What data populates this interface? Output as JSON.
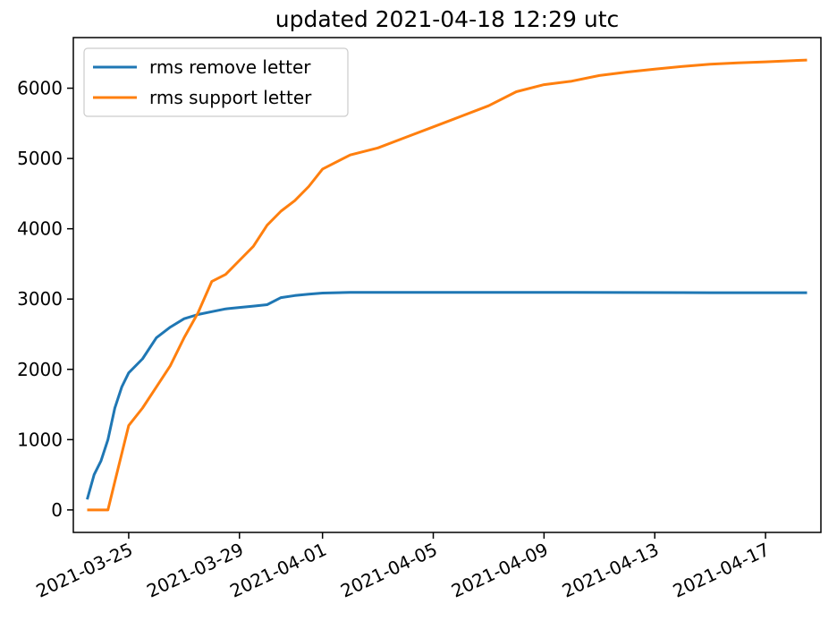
{
  "chart_data": {
    "type": "line",
    "title": "updated 2021-04-18 12:29 utc",
    "xlabel": "",
    "ylabel": "",
    "x_is_date": true,
    "xlim": [
      "2021-03-23",
      "2021-04-19"
    ],
    "ylim": [
      -320,
      6720
    ],
    "x_ticks": [
      "2021-03-25",
      "2021-03-29",
      "2021-04-01",
      "2021-04-05",
      "2021-04-09",
      "2021-04-13",
      "2021-04-17"
    ],
    "y_ticks": [
      0,
      1000,
      2000,
      3000,
      4000,
      5000,
      6000
    ],
    "grid": false,
    "legend": {
      "placement": "top-left"
    },
    "series": [
      {
        "name": "rms remove letter",
        "color": "#1f77b4",
        "points": [
          [
            "2021-03-23T12:00",
            150
          ],
          [
            "2021-03-23T18:00",
            500
          ],
          [
            "2021-03-24T00:00",
            700
          ],
          [
            "2021-03-24T06:00",
            1000
          ],
          [
            "2021-03-24T12:00",
            1450
          ],
          [
            "2021-03-24T18:00",
            1750
          ],
          [
            "2021-03-25T00:00",
            1950
          ],
          [
            "2021-03-25T12:00",
            2150
          ],
          [
            "2021-03-26T00:00",
            2450
          ],
          [
            "2021-03-26T12:00",
            2600
          ],
          [
            "2021-03-27T00:00",
            2720
          ],
          [
            "2021-03-27T12:00",
            2780
          ],
          [
            "2021-03-28T00:00",
            2820
          ],
          [
            "2021-03-28T12:00",
            2860
          ],
          [
            "2021-03-29T00:00",
            2880
          ],
          [
            "2021-03-29T12:00",
            2900
          ],
          [
            "2021-03-30T00:00",
            2920
          ],
          [
            "2021-03-30T12:00",
            3020
          ],
          [
            "2021-03-31T00:00",
            3050
          ],
          [
            "2021-03-31T12:00",
            3070
          ],
          [
            "2021-04-01T00:00",
            3085
          ],
          [
            "2021-04-02T00:00",
            3095
          ],
          [
            "2021-04-05T00:00",
            3095
          ],
          [
            "2021-04-10T00:00",
            3095
          ],
          [
            "2021-04-15T00:00",
            3090
          ],
          [
            "2021-04-18T12:00",
            3090
          ]
        ]
      },
      {
        "name": "rms support letter",
        "color": "#ff7f0e",
        "points": [
          [
            "2021-03-23T12:00",
            0
          ],
          [
            "2021-03-24T06:00",
            0
          ],
          [
            "2021-03-24T12:00",
            400
          ],
          [
            "2021-03-25T00:00",
            1200
          ],
          [
            "2021-03-25T12:00",
            1450
          ],
          [
            "2021-03-26T00:00",
            1750
          ],
          [
            "2021-03-26T12:00",
            2050
          ],
          [
            "2021-03-27T00:00",
            2450
          ],
          [
            "2021-03-27T12:00",
            2800
          ],
          [
            "2021-03-28T00:00",
            3250
          ],
          [
            "2021-03-28T12:00",
            3350
          ],
          [
            "2021-03-29T00:00",
            3550
          ],
          [
            "2021-03-29T12:00",
            3750
          ],
          [
            "2021-03-30T00:00",
            4050
          ],
          [
            "2021-03-30T12:00",
            4250
          ],
          [
            "2021-03-31T00:00",
            4400
          ],
          [
            "2021-03-31T12:00",
            4600
          ],
          [
            "2021-04-01T00:00",
            4850
          ],
          [
            "2021-04-02T00:00",
            5050
          ],
          [
            "2021-04-03T00:00",
            5150
          ],
          [
            "2021-04-04T00:00",
            5300
          ],
          [
            "2021-04-05T00:00",
            5450
          ],
          [
            "2021-04-06T00:00",
            5600
          ],
          [
            "2021-04-07T00:00",
            5750
          ],
          [
            "2021-04-08T00:00",
            5950
          ],
          [
            "2021-04-09T00:00",
            6050
          ],
          [
            "2021-04-10T00:00",
            6100
          ],
          [
            "2021-04-11T00:00",
            6180
          ],
          [
            "2021-04-12T00:00",
            6230
          ],
          [
            "2021-04-13T00:00",
            6270
          ],
          [
            "2021-04-14T00:00",
            6310
          ],
          [
            "2021-04-15T00:00",
            6340
          ],
          [
            "2021-04-16T00:00",
            6360
          ],
          [
            "2021-04-17T00:00",
            6375
          ],
          [
            "2021-04-18T12:00",
            6400
          ]
        ]
      }
    ]
  }
}
